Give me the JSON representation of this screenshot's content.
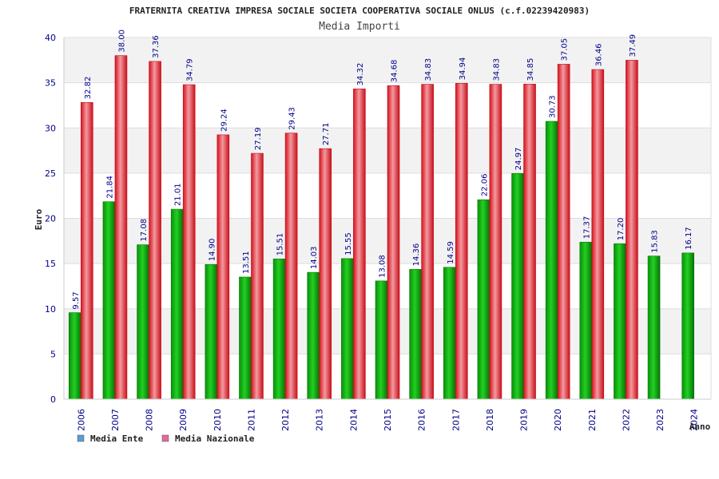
{
  "colors": {
    "ente": "#0aa40a",
    "nazionale": "#e8202a",
    "axis_text": "#00008b",
    "band": "#f2f2f2",
    "grid": "#dddddd",
    "legend_ente": "#5b9bd5",
    "legend_nazionale": "#e06c9f"
  },
  "chart_data": {
    "type": "bar",
    "title": "FRATERNITA CREATIVA IMPRESA SOCIALE SOCIETA COOPERATIVA SOCIALE ONLUS (c.f.02239420983)",
    "subtitle": "Media Importi",
    "xlabel": "Anno",
    "ylabel": "Euro",
    "ylim": [
      0,
      40
    ],
    "yticks": [
      "0",
      "5",
      "10",
      "15",
      "20",
      "25",
      "30",
      "35",
      "40"
    ],
    "categories": [
      "2006",
      "2007",
      "2008",
      "2009",
      "2010",
      "2011",
      "2012",
      "2013",
      "2014",
      "2015",
      "2016",
      "2017",
      "2018",
      "2019",
      "2020",
      "2021",
      "2022",
      "2023",
      "2024"
    ],
    "series": [
      {
        "name": "Media Ente",
        "values": [
          9.57,
          21.84,
          17.08,
          21.01,
          14.9,
          13.51,
          15.51,
          14.03,
          15.55,
          13.08,
          14.36,
          14.59,
          22.06,
          24.97,
          30.73,
          17.37,
          17.2,
          15.83,
          16.17
        ],
        "labels": [
          "9.57",
          "21.84",
          "17.08",
          "21.01",
          "14.90",
          "13.51",
          "15.51",
          "14.03",
          "15.55",
          "13.08",
          "14.36",
          "14.59",
          "22.06",
          "24.97",
          "30.73",
          "17.37",
          "17.20",
          "15.83",
          "16.17"
        ]
      },
      {
        "name": "Media Nazionale",
        "values": [
          32.82,
          38.0,
          37.36,
          34.79,
          29.24,
          27.19,
          29.43,
          27.71,
          34.32,
          34.68,
          34.83,
          34.94,
          34.83,
          34.85,
          37.05,
          36.46,
          37.49,
          null,
          null
        ],
        "labels": [
          "32.82",
          "38.00",
          "37.36",
          "34.79",
          "29.24",
          "27.19",
          "29.43",
          "27.71",
          "34.32",
          "34.68",
          "34.83",
          "34.94",
          "34.83",
          "34.85",
          "37.05",
          "36.46",
          "37.49",
          null,
          null
        ]
      }
    ],
    "legend": {
      "placement": "bottom-left",
      "entries": [
        "Media Ente",
        "Media Nazionale"
      ]
    },
    "grid": true
  }
}
